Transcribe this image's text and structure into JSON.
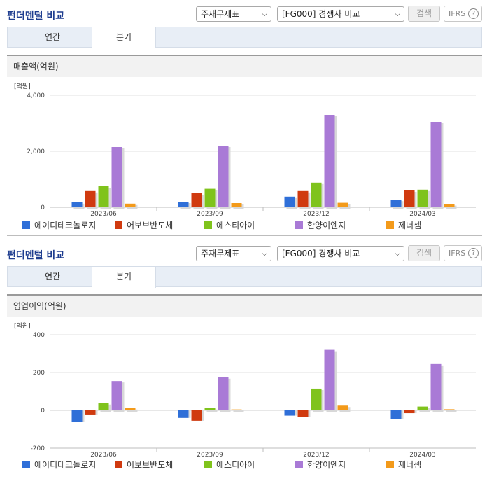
{
  "sections": [
    {
      "title": "펀더멘털 비교",
      "select1": "주재무제표",
      "select2": "[FG000] 경쟁사 비교",
      "search_label": "검색",
      "ifrs_label": "IFRS",
      "ifrs_help": "?",
      "tabs": [
        {
          "label": "연간"
        },
        {
          "label": "분기"
        }
      ],
      "active_tab": 1,
      "panel_title": "매출액(억원)",
      "unit": "[억원]"
    },
    {
      "title": "펀더멘털 비교",
      "select1": "주재무제표",
      "select2": "[FG000] 경쟁사 비교",
      "search_label": "검색",
      "ifrs_label": "IFRS",
      "ifrs_help": "?",
      "tabs": [
        {
          "label": "연간"
        },
        {
          "label": "분기"
        }
      ],
      "active_tab": 1,
      "panel_title": "영업이익(억원)",
      "unit": "[억원]"
    }
  ],
  "colors": {
    "에이디테크놀로지": "#2f6fd8",
    "어보브반도체": "#d03a0f",
    "에스티아이": "#7fc31c",
    "한양이엔지": "#a97ad6",
    "제너셈": "#f39a1a"
  },
  "chart_data": [
    {
      "type": "bar",
      "ylabel": "[억원]",
      "categories": [
        "2023/06",
        "2023/09",
        "2023/12",
        "2024/03"
      ],
      "ylim": [
        0,
        4000
      ],
      "yticks": [
        0,
        2000,
        4000
      ],
      "ytick_labels": [
        "0",
        "2,000",
        "4,000"
      ],
      "legend_position": "bottom",
      "series": [
        {
          "name": "에이디테크놀로지",
          "values": [
            180,
            200,
            380,
            270
          ]
        },
        {
          "name": "어보브반도체",
          "values": [
            580,
            500,
            580,
            600
          ]
        },
        {
          "name": "에스티아이",
          "values": [
            750,
            660,
            880,
            630
          ]
        },
        {
          "name": "한양이엔지",
          "values": [
            2150,
            2200,
            3300,
            3050
          ]
        },
        {
          "name": "제너셈",
          "values": [
            130,
            150,
            160,
            110
          ]
        }
      ]
    },
    {
      "type": "bar",
      "ylabel": "[억원]",
      "categories": [
        "2023/06",
        "2023/09",
        "2023/12",
        "2024/03"
      ],
      "ylim": [
        -200,
        400
      ],
      "yticks": [
        -200,
        0,
        200,
        400
      ],
      "ytick_labels": [
        "-200",
        "0",
        "200",
        "400"
      ],
      "legend_position": "bottom",
      "series": [
        {
          "name": "에이디테크놀로지",
          "values": [
            -62,
            -40,
            -28,
            -45
          ]
        },
        {
          "name": "어보브반도체",
          "values": [
            -22,
            -55,
            -35,
            -15
          ]
        },
        {
          "name": "에스티아이",
          "values": [
            38,
            12,
            115,
            20
          ]
        },
        {
          "name": "한양이엔지",
          "values": [
            155,
            175,
            320,
            245
          ]
        },
        {
          "name": "제너셈",
          "values": [
            12,
            5,
            25,
            6
          ]
        }
      ]
    }
  ]
}
